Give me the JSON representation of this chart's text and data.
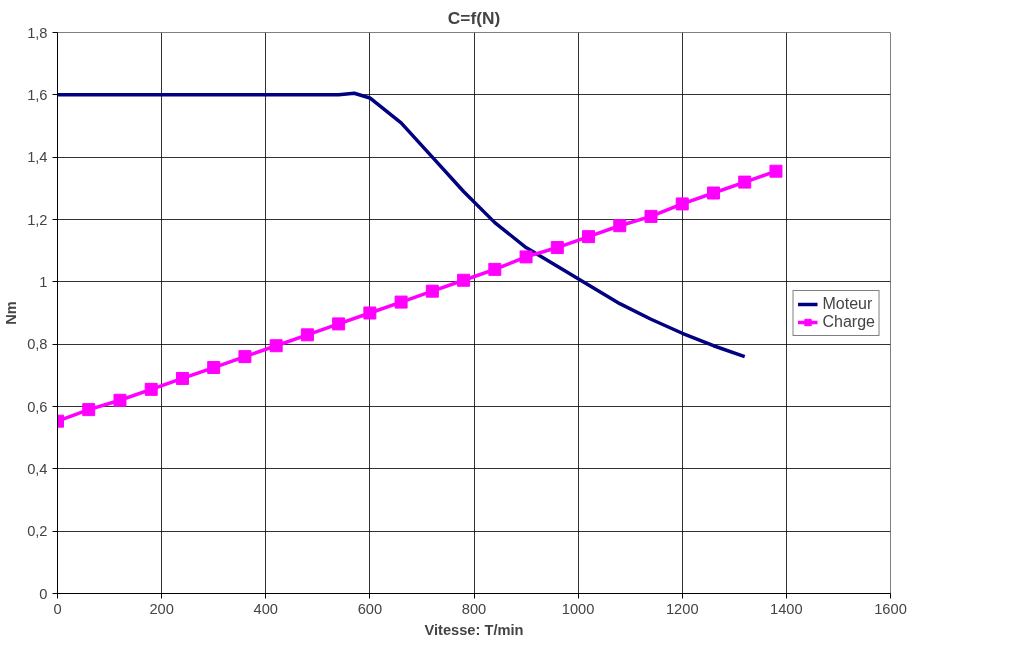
{
  "chart_data": {
    "type": "line",
    "title": "C=f(N)",
    "xlabel": "Vitesse: T/min",
    "ylabel": "Nm",
    "xlim": [
      0,
      1600
    ],
    "xticks": [
      0,
      200,
      400,
      600,
      800,
      1000,
      1200,
      1400,
      1600
    ],
    "ylim": [
      0,
      1.8
    ],
    "yticks": [
      0,
      {
        "value": 0.2,
        "label": "0,2"
      },
      {
        "value": 0.4,
        "label": "0,4"
      },
      {
        "value": 0.6,
        "label": "0,6"
      },
      {
        "value": 0.8,
        "label": "0,8"
      },
      1,
      {
        "value": 1.2,
        "label": "1,2"
      },
      {
        "value": 1.4,
        "label": "1,4"
      },
      {
        "value": 1.6,
        "label": "1,6"
      },
      {
        "value": 1.8,
        "label": "1,8"
      }
    ],
    "grid": true,
    "legend": "right",
    "series": [
      {
        "name": "Moteur",
        "color": "#000080",
        "marker": "none",
        "x": [
          0,
          60,
          120,
          180,
          240,
          300,
          360,
          420,
          480,
          540,
          570,
          600,
          660,
          720,
          780,
          840,
          900,
          960,
          1020,
          1080,
          1140,
          1200,
          1260,
          1320
        ],
        "values": [
          1.6,
          1.6,
          1.6,
          1.6,
          1.6,
          1.6,
          1.6,
          1.6,
          1.6,
          1.6,
          1.605,
          1.59,
          1.51,
          1.4,
          1.29,
          1.19,
          1.11,
          1.05,
          0.99,
          0.93,
          0.88,
          0.835,
          0.795,
          0.76
        ]
      },
      {
        "name": "Charge",
        "color": "#ff00ff",
        "marker": "square",
        "x": [
          0,
          60,
          120,
          180,
          240,
          300,
          360,
          420,
          480,
          540,
          600,
          660,
          720,
          780,
          840,
          900,
          960,
          1020,
          1080,
          1140,
          1200,
          1260,
          1320,
          1380
        ],
        "values": [
          0.553,
          0.59,
          0.62,
          0.655,
          0.69,
          0.725,
          0.76,
          0.795,
          0.83,
          0.865,
          0.9,
          0.935,
          0.97,
          1.005,
          1.04,
          1.08,
          1.11,
          1.145,
          1.18,
          1.21,
          1.25,
          1.285,
          1.32,
          1.355
        ]
      }
    ]
  }
}
